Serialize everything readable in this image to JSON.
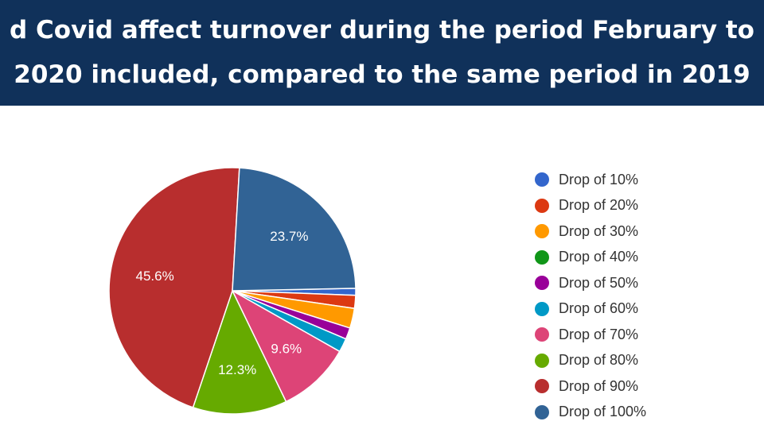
{
  "title": {
    "line1": "d Covid affect turnover during the period February to",
    "line2": "2020 included, compared to the same period in 2019"
  },
  "chart_data": {
    "type": "pie",
    "categories": [
      "Drop of 10%",
      "Drop of 20%",
      "Drop of 30%",
      "Drop of 40%",
      "Drop of 50%",
      "Drop of 60%",
      "Drop of 70%",
      "Drop of 80%",
      "Drop of 90%",
      "Drop of 100%"
    ],
    "values": [
      0.9,
      1.7,
      2.6,
      0,
      1.5,
      1.8,
      9.6,
      12.3,
      45.6,
      23.7
    ],
    "data_labels": [
      "",
      "",
      "",
      "",
      "",
      "",
      "9.6%",
      "12.3%",
      "45.6%",
      "23.7%"
    ],
    "colors": [
      "#3366cc",
      "#dc3912",
      "#ff9900",
      "#109618",
      "#990099",
      "#0099c6",
      "#dd4477",
      "#66aa00",
      "#b82e2e",
      "#316395"
    ],
    "start_slice": "Drop of 10%",
    "legend_position": "right"
  }
}
